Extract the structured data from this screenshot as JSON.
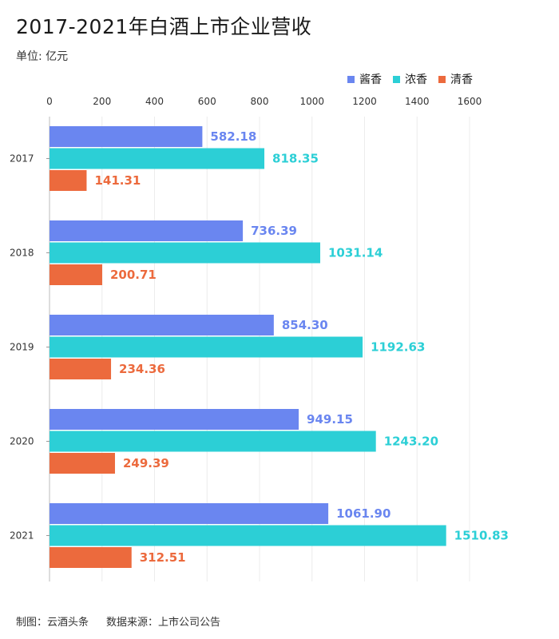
{
  "header": {
    "title": "2017-2021年白酒上市企业营收",
    "unit": "单位: 亿元"
  },
  "footer": {
    "credit": "制图：云酒头条",
    "source": "数据来源：上市公司公告"
  },
  "chart_data": {
    "type": "bar",
    "orientation": "horizontal",
    "title": "2017-2021年白酒上市企业营收",
    "unit": "单位: 亿元",
    "categories": [
      "2017",
      "2018",
      "2019",
      "2020",
      "2021"
    ],
    "series": [
      {
        "name": "酱香",
        "color": "#6a86f0",
        "values": [
          582.18,
          736.39,
          854.3,
          949.15,
          1061.9
        ],
        "labels": [
          "582.18",
          "736.39",
          "854.30",
          "949.15",
          "1061.90"
        ]
      },
      {
        "name": "浓香",
        "color": "#2ccfd6",
        "values": [
          818.35,
          1031.14,
          1192.63,
          1243.2,
          1510.83
        ],
        "labels": [
          "818.35",
          "1031.14",
          "1192.63",
          "1243.20",
          "1510.83"
        ]
      },
      {
        "name": "清香",
        "color": "#ec6a3d",
        "values": [
          141.31,
          200.71,
          234.36,
          249.39,
          312.51
        ],
        "labels": [
          "141.31",
          "200.71",
          "234.36",
          "249.39",
          "312.51"
        ]
      }
    ],
    "xlim": [
      0,
      1600
    ],
    "xticks": [
      "0",
      "200",
      "400",
      "600",
      "800",
      "1000",
      "1200",
      "1400",
      "1600"
    ],
    "grid": true,
    "legend_position": "top-right"
  }
}
